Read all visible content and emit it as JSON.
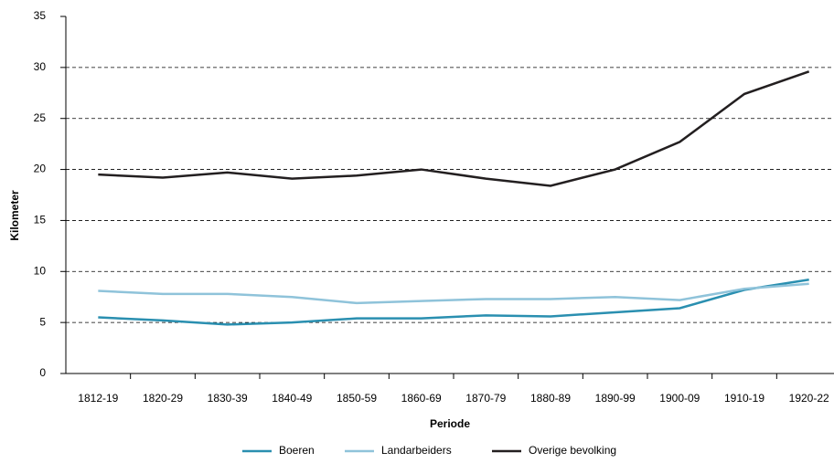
{
  "chart_data": {
    "type": "line",
    "categories": [
      "1812-19",
      "1820-29",
      "1830-39",
      "1840-49",
      "1850-59",
      "1860-69",
      "1870-79",
      "1880-89",
      "1890-99",
      "1900-09",
      "1910-19",
      "1920-22"
    ],
    "series": [
      {
        "name": "Boeren",
        "color": "#2a8fb0",
        "values": [
          5.5,
          5.2,
          4.8,
          5.0,
          5.4,
          5.4,
          5.7,
          5.6,
          6.0,
          6.4,
          8.2,
          9.2
        ]
      },
      {
        "name": "Landarbeiders",
        "color": "#8fc3da",
        "values": [
          8.1,
          7.8,
          7.8,
          7.5,
          6.9,
          7.1,
          7.3,
          7.3,
          7.5,
          7.2,
          8.3,
          8.8
        ]
      },
      {
        "name": "Overige bevolking",
        "color": "#231f20",
        "values": [
          19.5,
          19.2,
          19.7,
          19.1,
          19.4,
          20.0,
          19.1,
          18.4,
          20.0,
          22.7,
          27.4,
          29.6
        ]
      }
    ],
    "x_label": "Periode",
    "y_label": "Kilometer",
    "ylim": [
      0,
      35
    ],
    "yticks": [
      0,
      5,
      10,
      15,
      20,
      25,
      30,
      35
    ],
    "grid": true,
    "legend": "bottom"
  }
}
